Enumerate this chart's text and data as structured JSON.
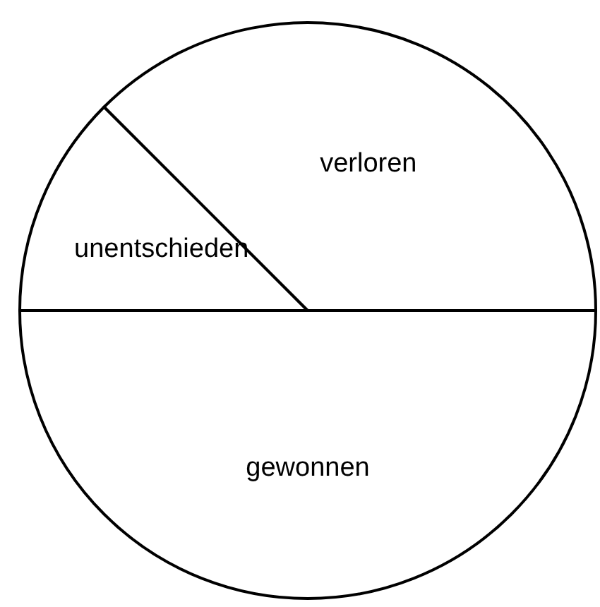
{
  "chart_data": {
    "type": "pie",
    "categories": [
      "gewonnen",
      "unentschieden",
      "verloren"
    ],
    "values": [
      50,
      12.5,
      37.5
    ],
    "colors": [
      "#ffffff",
      "#ffffff",
      "#ffffff"
    ]
  }
}
